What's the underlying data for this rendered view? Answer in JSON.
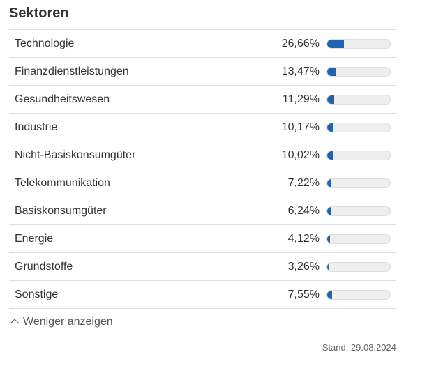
{
  "title": "Sektoren",
  "accent_color": "#1f63b3",
  "sectors": [
    {
      "name": "Technologie",
      "percent_label": "26,66%",
      "value": 26.66
    },
    {
      "name": "Finanzdienstleistungen",
      "percent_label": "13,47%",
      "value": 13.47
    },
    {
      "name": "Gesundheitswesen",
      "percent_label": "11,29%",
      "value": 11.29
    },
    {
      "name": "Industrie",
      "percent_label": "10,17%",
      "value": 10.17
    },
    {
      "name": "Nicht-Basiskonsumgüter",
      "percent_label": "10,02%",
      "value": 10.02
    },
    {
      "name": "Telekommunikation",
      "percent_label": "7,22%",
      "value": 7.22
    },
    {
      "name": "Basiskonsumgüter",
      "percent_label": "6,24%",
      "value": 6.24
    },
    {
      "name": "Energie",
      "percent_label": "4,12%",
      "value": 4.12
    },
    {
      "name": "Grundstoffe",
      "percent_label": "3,26%",
      "value": 3.26
    },
    {
      "name": "Sonstige",
      "percent_label": "7,55%",
      "value": 7.55
    }
  ],
  "toggle": {
    "icon": "chevron-up-icon",
    "label": "Weniger anzeigen"
  },
  "footer": {
    "stand": "Stand: 29.08.2024"
  }
}
